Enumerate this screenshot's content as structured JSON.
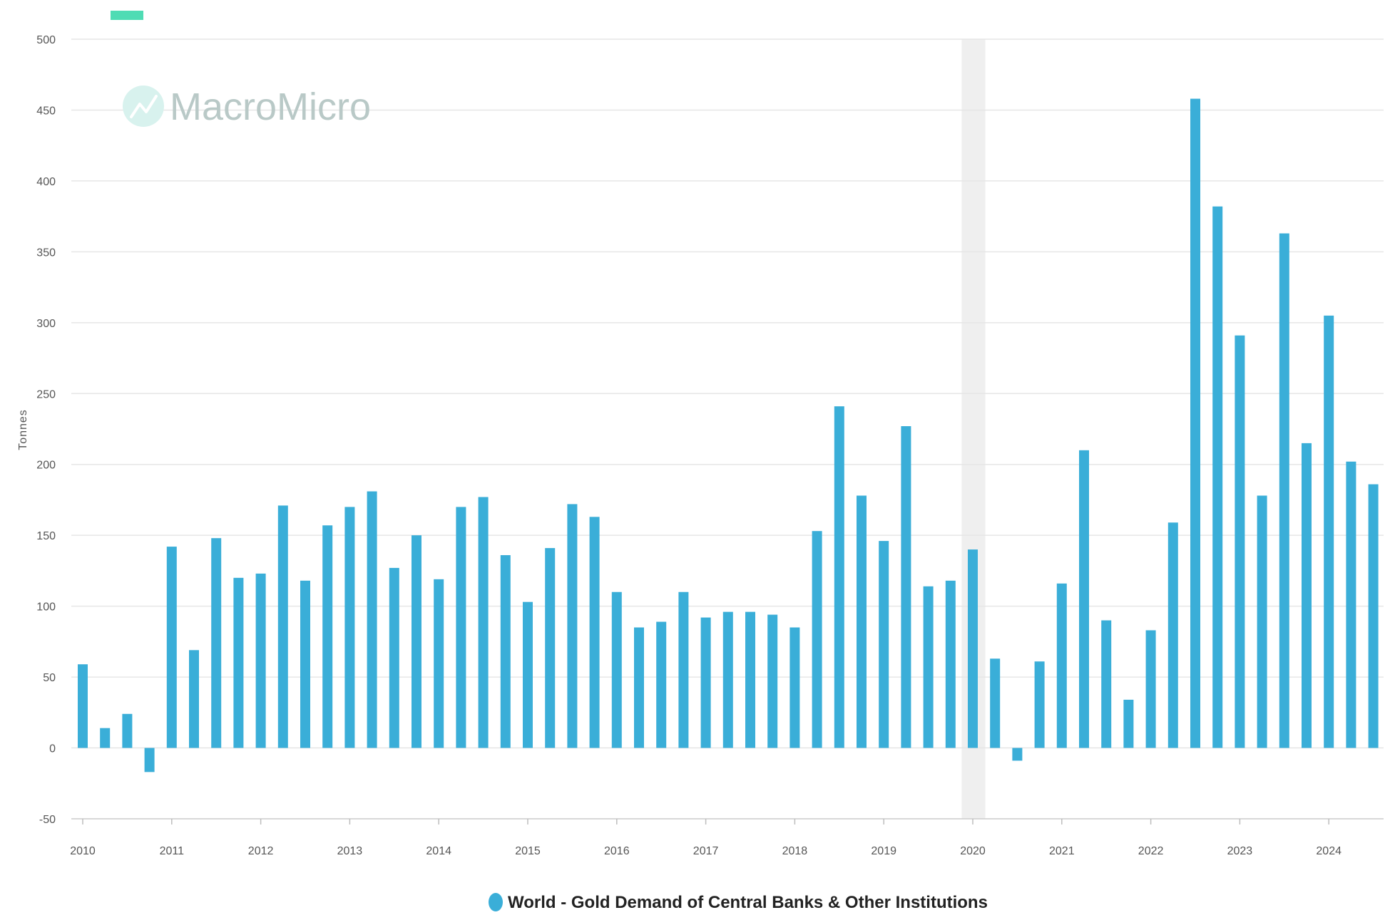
{
  "chart_data": {
    "type": "bar",
    "title": "",
    "xlabel": "",
    "ylabel": "Tonnes",
    "ylim": [
      -50,
      500
    ],
    "yticks": [
      -50,
      0,
      50,
      100,
      150,
      200,
      250,
      300,
      350,
      400,
      450,
      500
    ],
    "x_tick_labels": [
      "2010",
      "2011",
      "2012",
      "2013",
      "2014",
      "2015",
      "2016",
      "2017",
      "2018",
      "2019",
      "2020",
      "2021",
      "2022",
      "2023",
      "2024"
    ],
    "grid": "horizontal",
    "legend_position": "bottom-center",
    "shaded_period": {
      "start": "2020Q1",
      "end": "2020Q2",
      "color": "#efefef"
    },
    "categories": [
      "2010Q1",
      "2010Q2",
      "2010Q3",
      "2010Q4",
      "2011Q1",
      "2011Q2",
      "2011Q3",
      "2011Q4",
      "2012Q1",
      "2012Q2",
      "2012Q3",
      "2012Q4",
      "2013Q1",
      "2013Q2",
      "2013Q3",
      "2013Q4",
      "2014Q1",
      "2014Q2",
      "2014Q3",
      "2014Q4",
      "2015Q1",
      "2015Q2",
      "2015Q3",
      "2015Q4",
      "2016Q1",
      "2016Q2",
      "2016Q3",
      "2016Q4",
      "2017Q1",
      "2017Q2",
      "2017Q3",
      "2017Q4",
      "2018Q1",
      "2018Q2",
      "2018Q3",
      "2018Q4",
      "2019Q1",
      "2019Q2",
      "2019Q3",
      "2019Q4",
      "2020Q1",
      "2020Q2",
      "2020Q3",
      "2020Q4",
      "2021Q1",
      "2021Q2",
      "2021Q3",
      "2021Q4",
      "2022Q1",
      "2022Q2",
      "2022Q3",
      "2022Q4",
      "2023Q1",
      "2023Q2",
      "2023Q3",
      "2023Q4",
      "2024Q1",
      "2024Q2",
      "2024Q3"
    ],
    "series": [
      {
        "name": "World - Gold Demand of Central Banks & Other Institutions",
        "color": "#3aaed8",
        "values": [
          59,
          14,
          24,
          -17,
          142,
          69,
          148,
          120,
          123,
          171,
          118,
          157,
          170,
          181,
          127,
          150,
          119,
          170,
          177,
          136,
          103,
          141,
          172,
          163,
          110,
          85,
          89,
          110,
          92,
          96,
          96,
          94,
          85,
          153,
          241,
          178,
          146,
          227,
          114,
          118,
          140,
          63,
          -9,
          61,
          116,
          210,
          90,
          34,
          83,
          159,
          458,
          382,
          291,
          178,
          363,
          215,
          305,
          202,
          186
        ]
      }
    ]
  },
  "watermark": {
    "text": "MacroMicro",
    "icon": "macromicro-logo-icon",
    "color": "#b9c9c7"
  }
}
